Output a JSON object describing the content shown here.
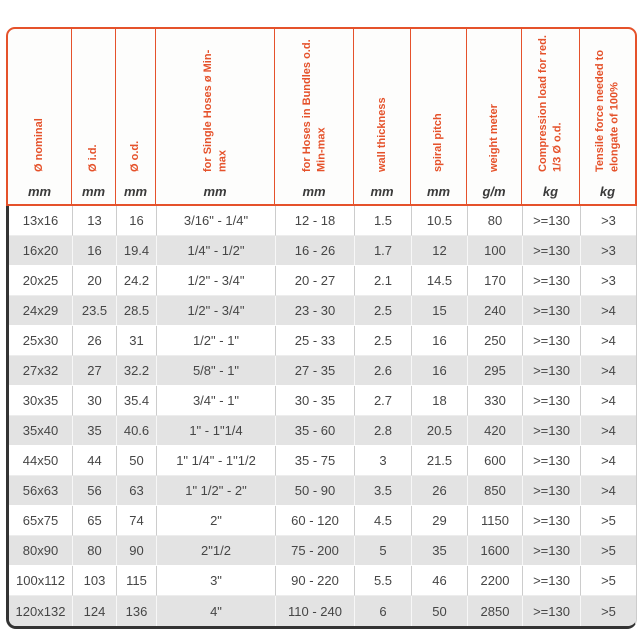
{
  "colors": {
    "accent_orange": "#e5522b",
    "dark_border": "#333333",
    "row_gray": "#e3e3e3",
    "text": "#464646"
  },
  "table": {
    "columns": [
      {
        "label": "Ø nominal",
        "unit": "mm"
      },
      {
        "label": "Ø i.d.",
        "unit": "mm"
      },
      {
        "label": "Ø o.d.",
        "unit": "mm"
      },
      {
        "label": "for Single Hoses ø Min-max",
        "unit": "mm"
      },
      {
        "label": "for Hoses in Bundles o.d.\nMin-max",
        "unit": "mm"
      },
      {
        "label": "wall thickness",
        "unit": "mm"
      },
      {
        "label": "spiral pitch",
        "unit": "mm"
      },
      {
        "label": "weight meter",
        "unit": "g/m"
      },
      {
        "label": "Compression load for red.\n1/3 Ø o.d.",
        "unit": "kg"
      },
      {
        "label": "Tensile force needed to\nelongate of 100%",
        "unit": "kg"
      }
    ],
    "rows": [
      [
        "13x16",
        "13",
        "16",
        "3/16\" - 1/4\"",
        "12 - 18",
        "1.5",
        "10.5",
        "80",
        ">=130",
        ">3"
      ],
      [
        "16x20",
        "16",
        "19.4",
        "1/4\" - 1/2\"",
        "16 - 26",
        "1.7",
        "12",
        "100",
        ">=130",
        ">3"
      ],
      [
        "20x25",
        "20",
        "24.2",
        "1/2\" - 3/4\"",
        "20 - 27",
        "2.1",
        "14.5",
        "170",
        ">=130",
        ">3"
      ],
      [
        "24x29",
        "23.5",
        "28.5",
        "1/2\" - 3/4\"",
        "23 - 30",
        "2.5",
        "15",
        "240",
        ">=130",
        ">4"
      ],
      [
        "25x30",
        "26",
        "31",
        "1/2\" - 1\"",
        "25 - 33",
        "2.5",
        "16",
        "250",
        ">=130",
        ">4"
      ],
      [
        "27x32",
        "27",
        "32.2",
        "5/8\" - 1\"",
        "27 - 35",
        "2.6",
        "16",
        "295",
        ">=130",
        ">4"
      ],
      [
        "30x35",
        "30",
        "35.4",
        "3/4\" - 1\"",
        "30 - 35",
        "2.7",
        "18",
        "330",
        ">=130",
        ">4"
      ],
      [
        "35x40",
        "35",
        "40.6",
        "1\" - 1\"1/4",
        "35 - 60",
        "2.8",
        "20.5",
        "420",
        ">=130",
        ">4"
      ],
      [
        "44x50",
        "44",
        "50",
        "1\" 1/4\" - 1\"1/2",
        "35 - 75",
        "3",
        "21.5",
        "600",
        ">=130",
        ">4"
      ],
      [
        "56x63",
        "56",
        "63",
        "1\" 1/2\" - 2\"",
        "50 - 90",
        "3.5",
        "26",
        "850",
        ">=130",
        ">4"
      ],
      [
        "65x75",
        "65",
        "74",
        "2\"",
        "60 - 120",
        "4.5",
        "29",
        "1150",
        ">=130",
        ">5"
      ],
      [
        "80x90",
        "80",
        "90",
        "2\"1/2",
        "75 - 200",
        "5",
        "35",
        "1600",
        ">=130",
        ">5"
      ],
      [
        "100x112",
        "103",
        "115",
        "3\"",
        "90 - 220",
        "5.5",
        "46",
        "2200",
        ">=130",
        ">5"
      ],
      [
        "120x132",
        "124",
        "136",
        "4\"",
        "110 - 240",
        "6",
        "50",
        "2850",
        ">=130",
        ">5"
      ]
    ]
  }
}
